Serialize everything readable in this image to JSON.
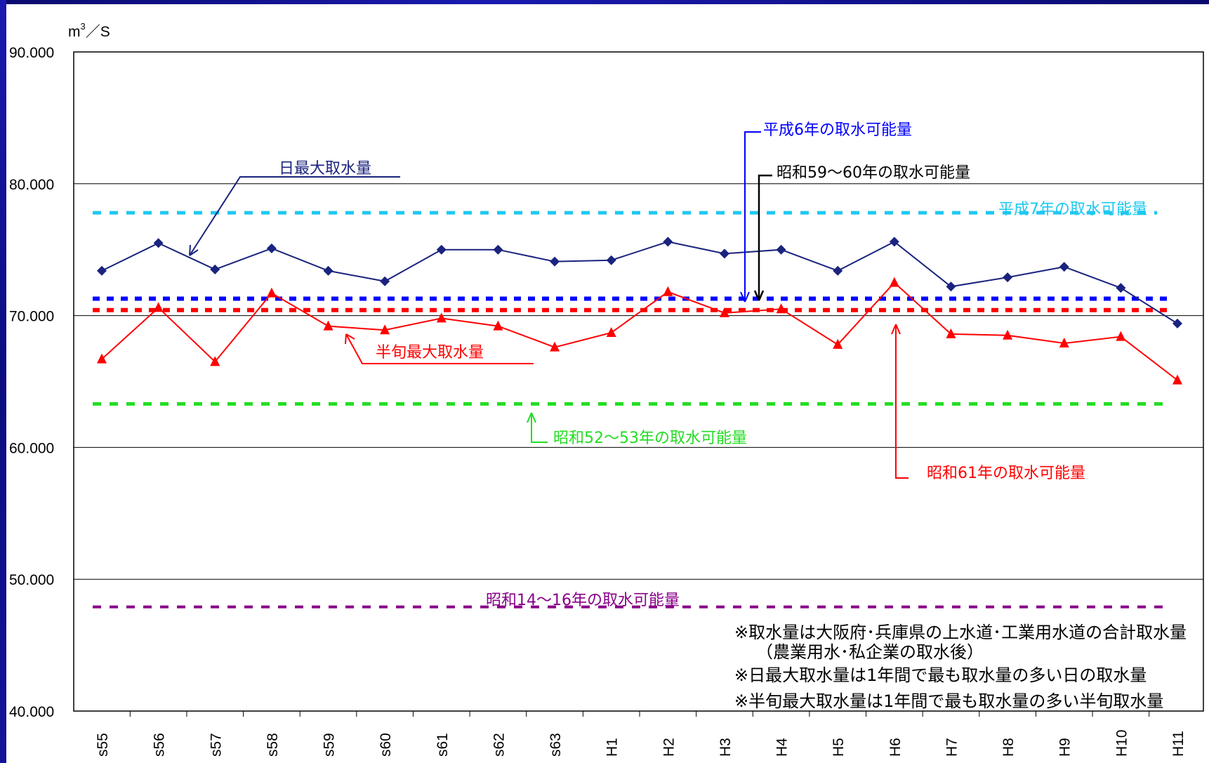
{
  "chart_data": {
    "type": "line",
    "unit_label": "m³／S",
    "categories": [
      "s55",
      "s56",
      "s57",
      "s58",
      "s59",
      "s60",
      "s61",
      "s62",
      "s63",
      "H1",
      "H2",
      "H3",
      "H4",
      "H5",
      "H6",
      "H7",
      "H8",
      "H9",
      "H10",
      "H11"
    ],
    "ylim": [
      40,
      90
    ],
    "yticks": [
      {
        "value": 40,
        "label": "40.000"
      },
      {
        "value": 50,
        "label": "50.000"
      },
      {
        "value": 60,
        "label": "60.000"
      },
      {
        "value": 70,
        "label": "70.000"
      },
      {
        "value": 80,
        "label": "80.000"
      },
      {
        "value": 90,
        "label": "90.000"
      }
    ],
    "grid": "horizontal",
    "series": [
      {
        "name": "日最大取水量",
        "color": "#1a237e",
        "marker": "diamond",
        "values": [
          73.4,
          75.5,
          73.5,
          75.1,
          73.4,
          72.6,
          75.0,
          75.0,
          74.1,
          74.2,
          75.6,
          74.7,
          75.0,
          73.4,
          75.6,
          72.2,
          72.9,
          73.7,
          72.1,
          69.4
        ]
      },
      {
        "name": "半旬最大取水量",
        "color": "#ff0000",
        "marker": "triangle",
        "values": [
          66.7,
          70.6,
          66.5,
          71.7,
          69.2,
          68.9,
          69.8,
          69.2,
          67.6,
          68.7,
          71.8,
          70.2,
          70.5,
          67.8,
          72.5,
          68.6,
          68.5,
          67.9,
          68.4,
          65.1
        ]
      }
    ],
    "reference_lines": [
      {
        "label": "平成7年の取水可能量",
        "value": 77.8,
        "color": "#1ec8f0"
      },
      {
        "label": "平成6年の取水可能量",
        "value": 71.1,
        "color": "#0000ff"
      },
      {
        "label": "昭和59～60年の取水可能量",
        "value": 71.1,
        "color": "#000000"
      },
      {
        "label": "昭和61年の取水可能量",
        "value": 70.5,
        "color": "#ff0000"
      },
      {
        "label": "昭和52～53年の取水可能量",
        "value": 63.3,
        "color": "#22dd22"
      },
      {
        "label": "昭和14～16年の取水可能量",
        "value": 47.9,
        "color": "#880088"
      }
    ],
    "notes": [
      "※取水量は大阪府･兵庫県の上水道･工業用水道の合計取水量",
      "（農業用水･私企業の取水後）",
      "※日最大取水量は1年間で最も取水量の多い日の取水量",
      "※半旬最大取水量は1年間で最も取水量の多い半旬取水量"
    ]
  }
}
